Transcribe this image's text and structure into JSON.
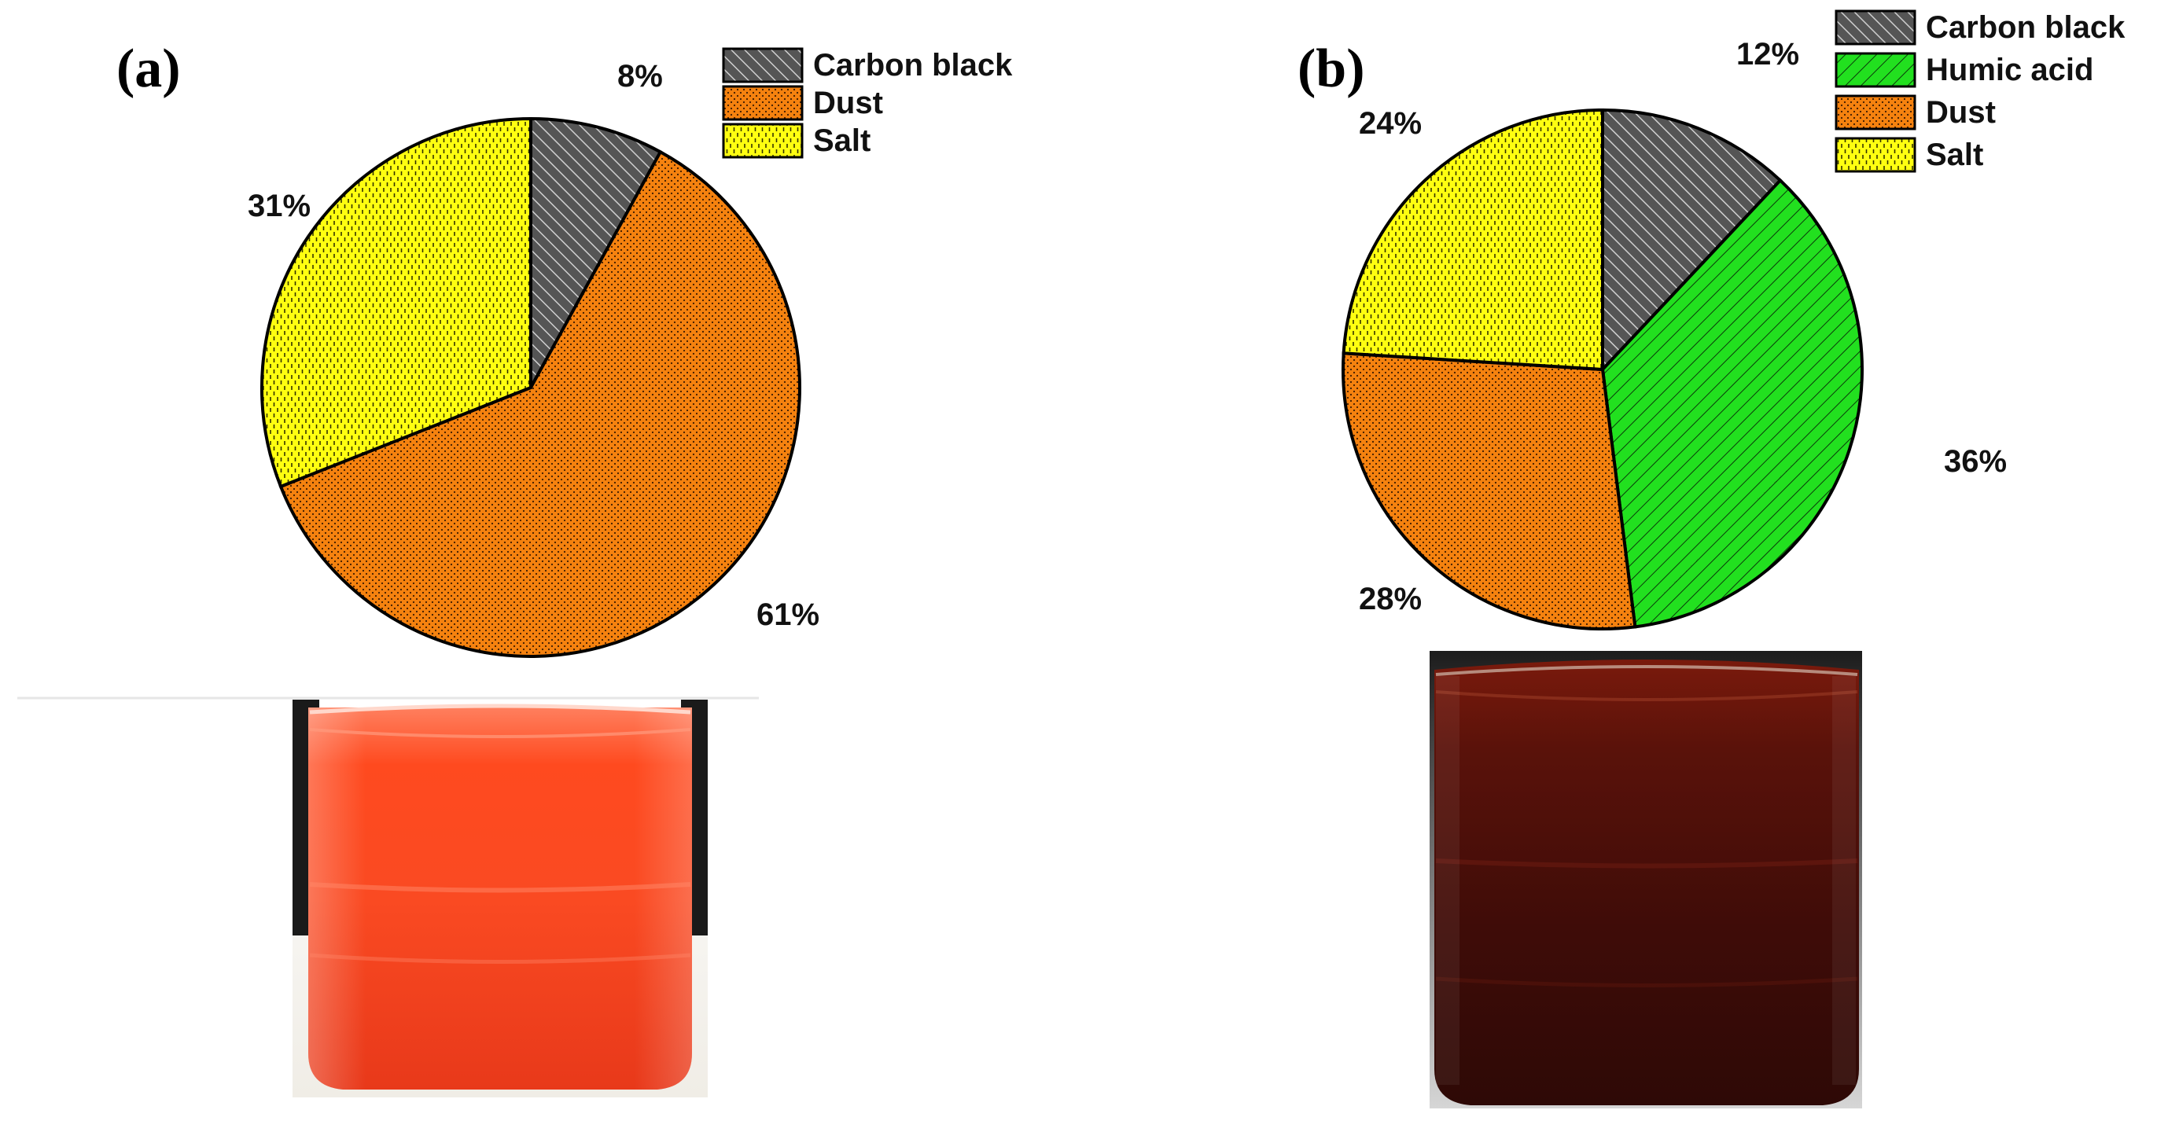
{
  "colors": {
    "Carbon black": "#555555",
    "Humic acid": "#22e01f",
    "Dust": "#f5820f",
    "Salt": "#ffff11"
  },
  "patterns": {
    "Carbon black": "hatch-dark",
    "Humic acid": "hatch-green",
    "Dust": "dots",
    "Salt": "dashes"
  },
  "chart_data": [
    {
      "type": "pie",
      "panel": "(a)",
      "title": "",
      "labels": [
        "Carbon black",
        "Dust",
        "Salt"
      ],
      "values": [
        8,
        61,
        31
      ],
      "value_labels": [
        "8%",
        "61%",
        "31%"
      ],
      "legend": [
        "Carbon black",
        "Dust",
        "Salt"
      ],
      "legend_placement": "top-right"
    },
    {
      "type": "pie",
      "panel": "(b)",
      "title": "",
      "labels": [
        "Carbon black",
        "Humic acid",
        "Dust",
        "Salt"
      ],
      "values": [
        12,
        36,
        28,
        24
      ],
      "value_labels": [
        "12%",
        "36%",
        "28%",
        "24%"
      ],
      "legend": [
        "Carbon black",
        "Humic acid",
        "Dust",
        "Salt"
      ],
      "legend_placement": "top-right"
    }
  ],
  "photos": [
    {
      "name": "beaker-photo-a",
      "liquid": "orange-red solution"
    },
    {
      "name": "beaker-photo-b",
      "liquid": "dark brown solution"
    }
  ]
}
